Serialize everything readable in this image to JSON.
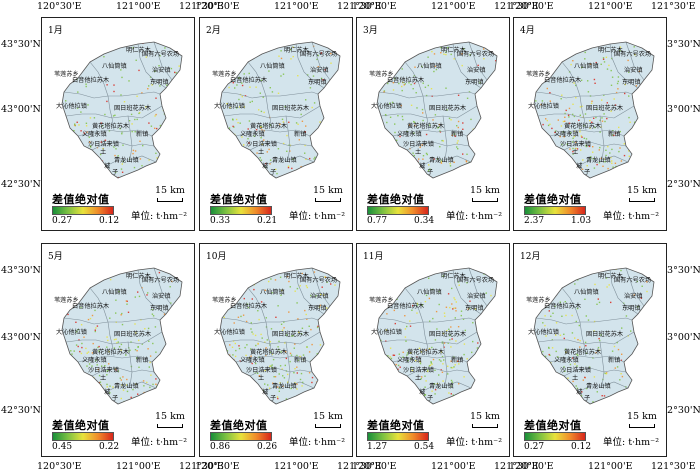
{
  "axes": {
    "lon_ticks": [
      "120°30'E",
      "121°00'E",
      "121°30'E"
    ],
    "lat_ticks": [
      "43°30'N",
      "43°00'N",
      "42°30'N"
    ]
  },
  "legend": {
    "title": "差值绝对值",
    "unit": "单位: t·hm⁻²",
    "scale": "15 km",
    "colors": [
      "#1a8f3a",
      "#7cc142",
      "#e8e23c",
      "#f08c2a",
      "#d8261c"
    ]
  },
  "place_names": [
    "明仁苏木",
    "国有六号农场",
    "八仙筒镇",
    "治安镇",
    "苇莲苏乡",
    "东明镇",
    "白音他拉苏木",
    "大沁他拉镇",
    "固日班花苏木",
    "黄花塔拉苏木",
    "义隆永镇",
    "新镇",
    "沙日浩来镇",
    "土",
    "青龙山镇",
    "城",
    "子"
  ],
  "panels": [
    {
      "month": "1月",
      "min": "0.27",
      "max": "0.12",
      "level": 0.35
    },
    {
      "month": "2月",
      "min": "0.33",
      "max": "0.21",
      "level": 0.4
    },
    {
      "month": "3月",
      "min": "0.77",
      "max": "0.34",
      "level": 0.5
    },
    {
      "month": "4月",
      "min": "2.37",
      "max": "1.03",
      "level": 0.55
    },
    {
      "month": "5月",
      "min": "0.45",
      "max": "0.22",
      "level": 0.45
    },
    {
      "month": "10月",
      "min": "0.86",
      "max": "0.26",
      "level": 0.85
    },
    {
      "month": "11月",
      "min": "1.27",
      "max": "0.54",
      "level": 0.65
    },
    {
      "month": "12月",
      "min": "0.27",
      "max": "0.12",
      "level": 0.35
    }
  ]
}
